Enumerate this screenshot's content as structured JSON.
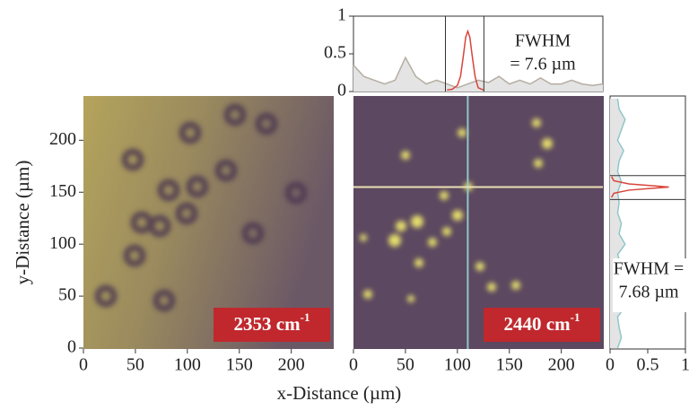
{
  "chart_data": [
    {
      "type": "heatmap",
      "xlabel": "x-Distance (µm)",
      "ylabel": "y-Distance (µm)",
      "xlim": [
        0,
        240
      ],
      "ylim": [
        0,
        240
      ],
      "xticks": [
        0,
        50,
        100,
        150,
        200
      ],
      "yticks": [
        0,
        50,
        100,
        150,
        200
      ],
      "label": {
        "text": "2353 cm",
        "sup": "-1"
      },
      "label_color": "#c0282d"
    },
    {
      "type": "heatmap",
      "xlim": [
        0,
        240
      ],
      "ylim": [
        0,
        240
      ],
      "xticks": [
        0,
        50,
        100,
        150,
        200
      ],
      "label": {
        "text": "2440 cm",
        "sup": "-1"
      },
      "label_color": "#c0282d",
      "crosshair": {
        "x": 110,
        "y": 155,
        "x_color": "#8fc7c9",
        "y_color": "#eadfb5"
      }
    },
    {
      "type": "line",
      "xlim": [
        0,
        240
      ],
      "ylim": [
        0,
        1
      ],
      "yticks": [
        0,
        0.5,
        1
      ],
      "series": [
        {
          "x": [
            0,
            10,
            20,
            30,
            40,
            50,
            60,
            70,
            80,
            90,
            100,
            110,
            120,
            130,
            140,
            150,
            160,
            170,
            180,
            190,
            200,
            210,
            220,
            230,
            240
          ],
          "values": [
            0.35,
            0.2,
            0.15,
            0.1,
            0.15,
            0.45,
            0.2,
            0.1,
            0.15,
            0.1,
            0.05,
            0.1,
            0.15,
            0.12,
            0.2,
            0.1,
            0.15,
            0.1,
            0.18,
            0.1,
            0.1,
            0.15,
            0.1,
            0.08,
            0.1
          ],
          "color": "#b5ada2",
          "fill": "#e4e4e4"
        },
        {
          "x": [
            90,
            95,
            100,
            103,
            106,
            108,
            110,
            112,
            114,
            117,
            120,
            125
          ],
          "values": [
            0.02,
            0.03,
            0.08,
            0.2,
            0.5,
            0.72,
            0.8,
            0.72,
            0.5,
            0.2,
            0.05,
            0.02
          ],
          "color": "#d9443a"
        }
      ],
      "window": [
        88.5,
        125.5
      ],
      "annotation": [
        "FWHM",
        "= 7.6 µm"
      ]
    },
    {
      "type": "profile",
      "xlim": [
        0,
        1
      ],
      "ylim": [
        0,
        240
      ],
      "xticks": [
        0,
        0.5,
        1
      ],
      "series": [
        {
          "y": [
            0,
            10,
            20,
            30,
            40,
            50,
            60,
            70,
            80,
            90,
            100,
            110,
            120,
            130,
            140,
            150,
            160,
            170,
            180,
            190,
            200,
            210,
            220,
            230,
            240
          ],
          "values": [
            0.1,
            0.15,
            0.12,
            0.1,
            0.2,
            0.15,
            0.1,
            0.25,
            0.15,
            0.1,
            0.2,
            0.12,
            0.15,
            0.1,
            0.12,
            0.1,
            0.15,
            0.1,
            0.12,
            0.18,
            0.1,
            0.15,
            0.2,
            0.12,
            0.1
          ],
          "color": "#8fc7c9",
          "fill": "#e4e4e4"
        },
        {
          "y": [
            145,
            149,
            152,
            154,
            155,
            156,
            158,
            161,
            165
          ],
          "values": [
            0.02,
            0.05,
            0.25,
            0.6,
            0.78,
            0.6,
            0.25,
            0.05,
            0.02
          ],
          "color": "#d9443a"
        }
      ],
      "window": [
        143,
        166
      ],
      "annotation": [
        "FWHM =",
        "7.68 µm"
      ]
    }
  ]
}
